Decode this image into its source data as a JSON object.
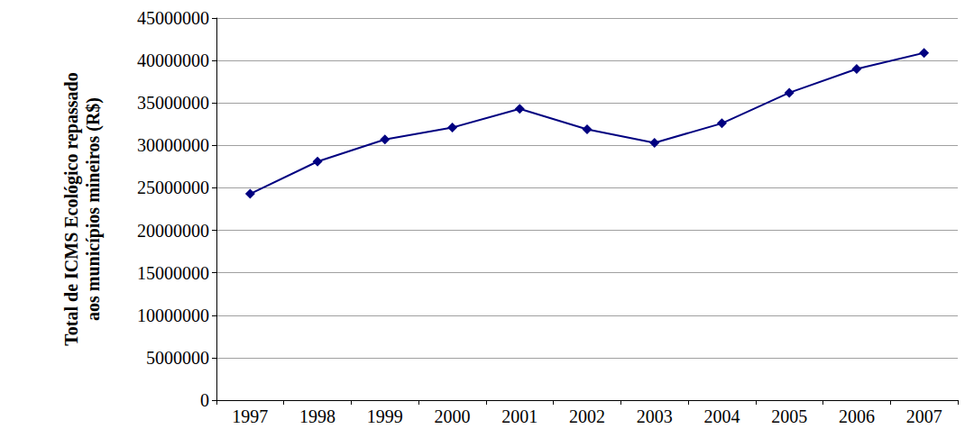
{
  "chart_data": {
    "type": "line",
    "y_label": "Total de ICMS Ecológico repassado\naos municípios mineiros (R$)",
    "categories": [
      "1997",
      "1998",
      "1999",
      "2000",
      "2001",
      "2002",
      "2003",
      "2004",
      "2005",
      "2006",
      "2007"
    ],
    "values": [
      24300000,
      28100000,
      30700000,
      32100000,
      34300000,
      31900000,
      30300000,
      32600000,
      36200000,
      39000000,
      40900000
    ],
    "color": "#000080",
    "marker": "diamond",
    "line_style": "solid",
    "ylim": [
      0,
      45000000
    ],
    "yticks": [
      0,
      5000000,
      10000000,
      15000000,
      20000000,
      25000000,
      30000000,
      35000000,
      40000000,
      45000000
    ],
    "grid": true
  }
}
